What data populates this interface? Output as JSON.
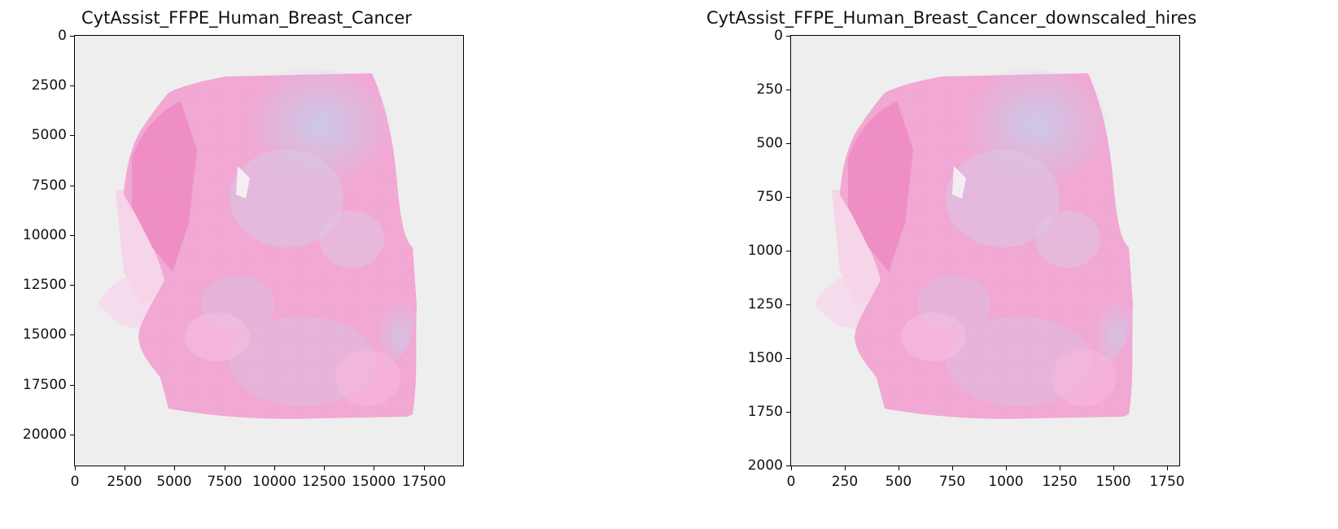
{
  "panels": [
    {
      "title": "CytAssist_FFPE_Human_Breast_Cancer",
      "xticks": [
        "0",
        "2500",
        "5000",
        "7500",
        "10000",
        "12500",
        "15000",
        "17500"
      ],
      "yticks": [
        "0",
        "2500",
        "5000",
        "7500",
        "10000",
        "12500",
        "15000",
        "17500",
        "20000"
      ],
      "xlim": [
        0,
        19500
      ],
      "ylim": [
        21600,
        0
      ]
    },
    {
      "title": "CytAssist_FFPE_Human_Breast_Cancer_downscaled_hires",
      "xticks": [
        "0",
        "250",
        "500",
        "750",
        "1000",
        "1250",
        "1500",
        "1750"
      ],
      "yticks": [
        "0",
        "250",
        "500",
        "750",
        "1000",
        "1250",
        "1500",
        "1750",
        "2000"
      ],
      "xlim": [
        0,
        1810
      ],
      "ylim": [
        2000,
        0
      ]
    }
  ],
  "image": {
    "description_colors": {
      "background": "#eeeeee",
      "stroma_pink": "#f3a7d3",
      "deep_pink": "#ef8cc4",
      "purple_region": "#d8c3e3",
      "lavender": "#cfc9e6"
    }
  }
}
